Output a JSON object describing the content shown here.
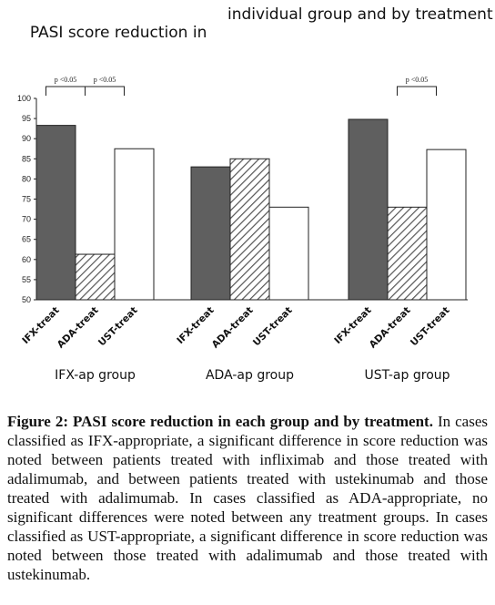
{
  "chart_data": {
    "type": "bar",
    "title_part1": "PASI score reduction in",
    "title_part2": "individual group and by treatment",
    "ylim": [
      50,
      100
    ],
    "yticks": [
      50,
      55,
      60,
      65,
      70,
      75,
      80,
      85,
      90,
      95,
      100
    ],
    "groups": [
      {
        "label": "IFX-ap group",
        "bars": [
          {
            "category": "IFX-treat",
            "value": 93.3,
            "style": "dark"
          },
          {
            "category": "ADA-treat",
            "value": 61.3,
            "style": "hatched"
          },
          {
            "category": "UST-treat",
            "value": 87.5,
            "style": "white"
          }
        ],
        "significance": [
          {
            "from": 0,
            "to": 1,
            "label": "p <0.05"
          },
          {
            "from": 1,
            "to": 2,
            "label": "p <0.05"
          }
        ]
      },
      {
        "label": "ADA-ap group",
        "bars": [
          {
            "category": "IFX-treat",
            "value": 83.0,
            "style": "dark"
          },
          {
            "category": "ADA-treat",
            "value": 85.0,
            "style": "hatched"
          },
          {
            "category": "UST-treat",
            "value": 73.0,
            "style": "white"
          }
        ],
        "significance": []
      },
      {
        "label": "UST-ap group",
        "bars": [
          {
            "category": "IFX-treat",
            "value": 94.8,
            "style": "dark"
          },
          {
            "category": "ADA-treat",
            "value": 73.0,
            "style": "hatched"
          },
          {
            "category": "UST-treat",
            "value": 87.3,
            "style": "white"
          }
        ],
        "significance": [
          {
            "from": 1,
            "to": 2,
            "label": "p <0.05"
          }
        ]
      }
    ],
    "colors": {
      "dark": "#5f5f5f",
      "hatch": "#555555",
      "outline": "#222222"
    }
  },
  "caption": {
    "label": "Figure 2: PASI score reduction in each group and by treatment.",
    "text": " In cases classified as IFX-appropriate, a significant difference in score reduction was noted between patients treated with infliximab and those treated with adalimumab, and between patients treated with ustekinumab and those treated with adalimumab. In cases classified as ADA-appropriate, no significant differences were noted between any treatment groups. In cases classified as UST-appropriate, a significant difference in score reduction was noted between those treated with adalimumab and those treated with ustekinumab."
  }
}
